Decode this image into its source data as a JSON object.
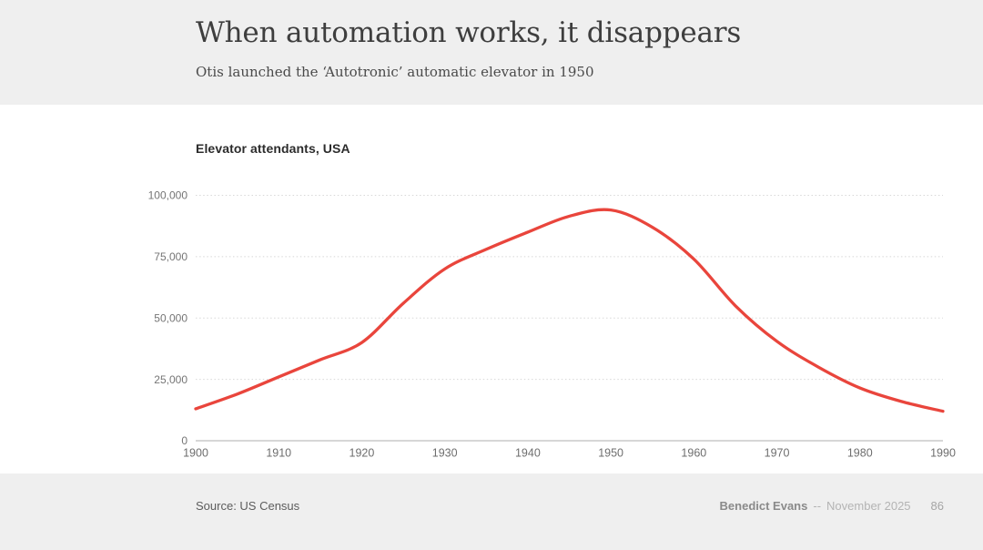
{
  "header": {
    "title": "When automation works, it disappears",
    "subtitle": "Otis launched the ‘Autotronic’ automatic elevator in 1950"
  },
  "chart": {
    "title": "Elevator attendants, USA"
  },
  "chart_data": {
    "type": "line",
    "title": "Elevator attendants, USA",
    "series_name": "Elevator attendants",
    "x": [
      1900,
      1905,
      1910,
      1915,
      1920,
      1925,
      1930,
      1935,
      1940,
      1945,
      1950,
      1955,
      1960,
      1965,
      1970,
      1975,
      1980,
      1985,
      1990
    ],
    "values": [
      13000,
      19000,
      26000,
      33000,
      40000,
      56000,
      70000,
      78000,
      85000,
      91500,
      94000,
      87000,
      74000,
      55000,
      40500,
      30000,
      21500,
      16000,
      12000
    ],
    "xlim": [
      1900,
      1990
    ],
    "ylim": [
      0,
      100000
    ],
    "x_ticks": [
      1900,
      1910,
      1920,
      1930,
      1940,
      1950,
      1960,
      1970,
      1980,
      1990
    ],
    "y_ticks": [
      0,
      25000,
      50000,
      75000,
      100000
    ],
    "y_tick_labels": [
      "0",
      "25,000",
      "50,000",
      "75,000",
      "100,000"
    ],
    "grid": "horizontal-dotted",
    "legend": "none",
    "line_color": "#e9453c"
  },
  "footer": {
    "source": "Source: US Census",
    "author": "Benedict Evans",
    "dash": "--",
    "date": "November 2025",
    "page": "86"
  }
}
